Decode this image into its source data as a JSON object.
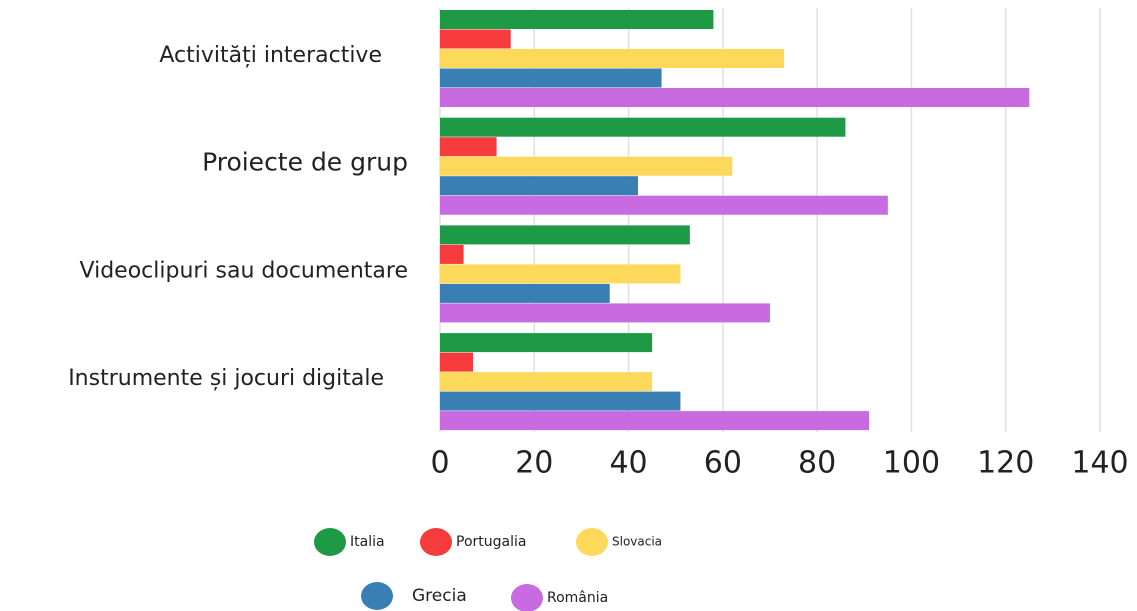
{
  "chart_data": {
    "type": "barh",
    "categories": [
      "Activități interactive",
      "Proiecte de grup",
      "Videoclipuri sau documentare",
      "Instrumente și jocuri digitale"
    ],
    "series": [
      {
        "name": "Italia",
        "color": "#1e9a47",
        "values": [
          58,
          86,
          53,
          45
        ]
      },
      {
        "name": "Portugalia",
        "color": "#f53b3b",
        "values": [
          15,
          12,
          5,
          7
        ]
      },
      {
        "name": "Slovacia",
        "color": "#fcd95a",
        "values": [
          73,
          62,
          51,
          45
        ]
      },
      {
        "name": "Grecia",
        "color": "#3a7fb4",
        "values": [
          47,
          42,
          36,
          51
        ]
      },
      {
        "name": "România",
        "color": "#c86ae0",
        "values": [
          125,
          95,
          70,
          91
        ]
      }
    ],
    "xlim": [
      0,
      140
    ],
    "xticks": [
      0,
      20,
      40,
      60,
      80,
      100,
      120,
      140
    ],
    "grid": true
  }
}
